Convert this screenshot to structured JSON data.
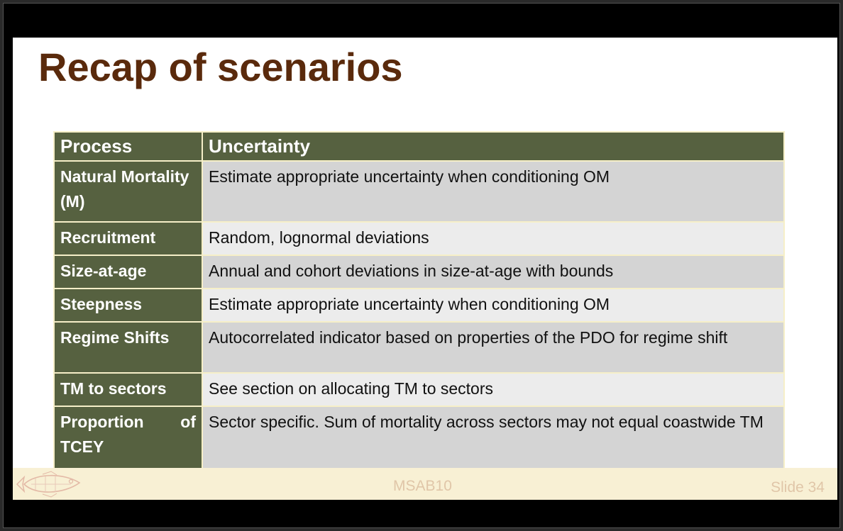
{
  "slide": {
    "title": "Recap of scenarios",
    "table": {
      "headers": [
        "Process",
        "Uncertainty"
      ],
      "rows": [
        {
          "process": "Natural Mortality (M)",
          "uncertainty": "Estimate appropriate uncertainty when conditioning OM"
        },
        {
          "process": "Recruitment",
          "uncertainty": "Random, lognormal deviations"
        },
        {
          "process": "Size-at-age",
          "uncertainty": "Annual and cohort deviations in size-at-age with bounds"
        },
        {
          "process": "Steepness",
          "uncertainty": "Estimate appropriate uncertainty when conditioning OM"
        },
        {
          "process": "Regime Shifts",
          "uncertainty": "Autocorrelated indicator based on properties of the PDO for regime shift"
        },
        {
          "process": "TM to sectors",
          "uncertainty": "See section on allocating TM to sectors"
        },
        {
          "process": "Proportion of TCEY",
          "uncertainty": "Sector specific. Sum of mortality across sectors may not equal coastwide TM"
        }
      ]
    },
    "footer": {
      "center": "MSAB10",
      "slide_number": "Slide 34",
      "logo_icon": "fish-logo-icon"
    }
  },
  "colors": {
    "title": "#5a2a0c",
    "header_bg": "#566140",
    "row_dark": "#d4d4d4",
    "row_light": "#ececec",
    "footer_bg": "#f8f0d4",
    "footer_text": "#e0c6a8"
  }
}
